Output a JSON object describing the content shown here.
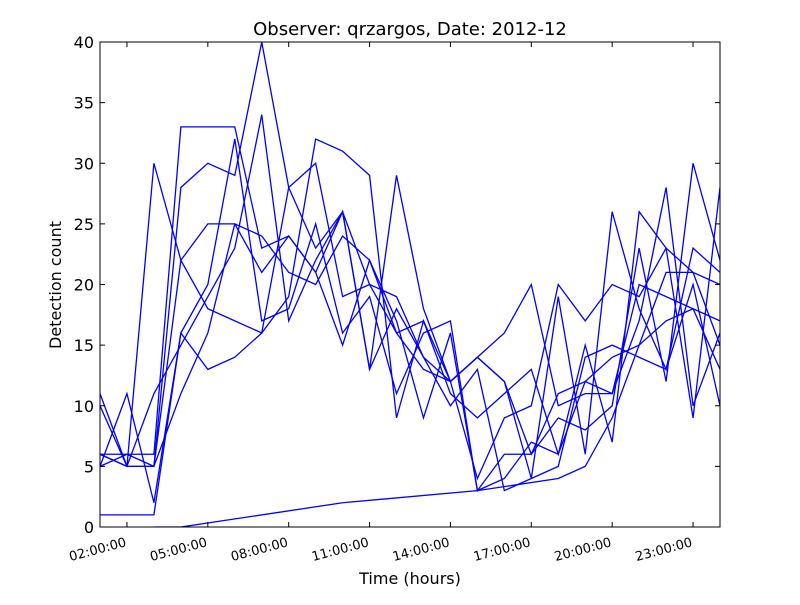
{
  "chart_data": {
    "type": "line",
    "title": "Observer: qrzargos, Date: 2012-12",
    "xlabel": "Time (hours)",
    "ylabel": "Detection count",
    "xlim": [
      1,
      24
    ],
    "ylim": [
      0,
      40
    ],
    "x_ticks": [
      {
        "value": 2,
        "label": "02:00:00"
      },
      {
        "value": 5,
        "label": "05:00:00"
      },
      {
        "value": 8,
        "label": "08:00:00"
      },
      {
        "value": 11,
        "label": "11:00:00"
      },
      {
        "value": 14,
        "label": "14:00:00"
      },
      {
        "value": 17,
        "label": "17:00:00"
      },
      {
        "value": 20,
        "label": "20:00:00"
      },
      {
        "value": 23,
        "label": "23:00:00"
      }
    ],
    "y_ticks": [
      0,
      5,
      10,
      15,
      20,
      25,
      30,
      35,
      40
    ],
    "grid": false,
    "series_color": "#0000ff",
    "series": [
      {
        "x": [
          1,
          2,
          3,
          4,
          5,
          6,
          7,
          8,
          9,
          10,
          11,
          12,
          13,
          14,
          15,
          16,
          17,
          18,
          19,
          20,
          21,
          22,
          23,
          24
        ],
        "values": [
          11,
          5,
          30,
          22,
          18,
          17,
          16,
          28,
          23,
          26,
          13,
          29,
          18,
          12,
          14,
          12,
          6,
          9,
          8,
          10,
          23,
          12,
          30,
          22
        ]
      },
      {
        "x": [
          1,
          2,
          3,
          4,
          5,
          6,
          7,
          8,
          9,
          10,
          11,
          12,
          13,
          14,
          15,
          16,
          17,
          18,
          19,
          20,
          21,
          22,
          23,
          24
        ],
        "values": [
          6,
          6,
          6,
          33,
          33,
          33,
          23,
          24,
          21,
          15,
          22,
          17,
          9,
          16,
          3,
          4,
          7,
          6,
          12,
          11,
          17,
          28,
          10,
          16
        ]
      },
      {
        "x": [
          1,
          2,
          3,
          4,
          5,
          6,
          7,
          8,
          9,
          10,
          11,
          12,
          13,
          14,
          15,
          16,
          17,
          18,
          19,
          20,
          21,
          22,
          23,
          24
        ],
        "values": [
          5,
          6,
          5,
          28,
          30,
          29,
          40,
          28,
          30,
          19,
          20,
          16,
          17,
          12,
          14,
          16,
          20,
          10,
          11,
          11,
          20,
          19,
          18,
          17
        ]
      },
      {
        "x": [
          1,
          2,
          3,
          4,
          5,
          6,
          7,
          8,
          9,
          10,
          11,
          12,
          13,
          14,
          15,
          16,
          17,
          18,
          19,
          20,
          21,
          22,
          23,
          24
        ],
        "values": [
          10,
          5,
          5,
          22,
          25,
          25,
          21,
          24,
          21,
          26,
          13,
          18,
          14,
          12,
          4,
          9,
          10,
          20,
          17,
          20,
          19,
          23,
          21,
          15
        ]
      },
      {
        "x": [
          1,
          2,
          3,
          4,
          5,
          6,
          7,
          8,
          9,
          10,
          11,
          12,
          13,
          14,
          15,
          16,
          17,
          18,
          19,
          20,
          21,
          22,
          23,
          24
        ],
        "values": [
          1,
          1,
          1,
          16,
          20,
          32,
          17,
          18,
          25,
          16,
          19,
          11,
          16,
          17,
          3,
          6,
          6,
          11,
          12,
          14,
          15,
          17,
          18,
          13
        ]
      },
      {
        "x": [
          1,
          2,
          3,
          4,
          5,
          6,
          7,
          8,
          9,
          10,
          11,
          12,
          13,
          14,
          15,
          16,
          17,
          18,
          19,
          20,
          21,
          22,
          23,
          24
        ],
        "values": [
          6,
          5,
          5,
          11,
          16,
          25,
          24,
          21,
          20,
          24,
          22,
          16,
          13,
          12,
          14,
          12,
          4,
          19,
          6,
          26,
          18,
          13,
          23,
          21
        ]
      },
      {
        "x": [
          1,
          2,
          3,
          4,
          5,
          6,
          7,
          8,
          9,
          10,
          11,
          12,
          13,
          14,
          15,
          16,
          17,
          18,
          19,
          20,
          21,
          22,
          23,
          24
        ],
        "values": [
          5,
          11,
          2,
          16,
          13,
          14,
          16,
          19,
          32,
          31,
          29,
          9,
          17,
          11,
          9,
          11,
          13,
          6,
          15,
          7,
          26,
          23,
          9,
          28
        ]
      },
      {
        "x": [
          1,
          2,
          3,
          4,
          5,
          6,
          7,
          8,
          9,
          10,
          11,
          12,
          13,
          14,
          15,
          16,
          17,
          18,
          19,
          20,
          21,
          22,
          23,
          24
        ],
        "values": [
          6,
          5,
          11,
          15,
          19,
          23,
          34,
          17,
          22,
          26,
          20,
          19,
          14,
          10,
          13,
          3,
          4,
          5,
          14,
          15,
          14,
          13,
          20,
          10
        ]
      },
      {
        "x": [
          3,
          4,
          10,
          15,
          18,
          19,
          20,
          21,
          22,
          23,
          24
        ],
        "values": [
          0,
          0,
          2,
          3,
          4,
          5,
          9,
          15,
          21,
          21,
          20
        ]
      }
    ]
  }
}
